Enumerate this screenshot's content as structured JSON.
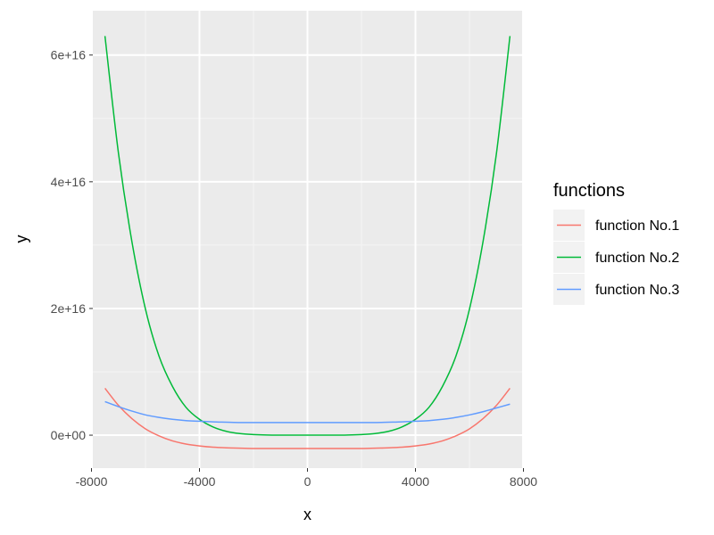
{
  "chart_data": {
    "type": "line",
    "title": "",
    "xlabel": "x",
    "ylabel": "y",
    "xlim": [
      -7950,
      7950
    ],
    "ylim": [
      -5200000000000000.0,
      6.7e+16
    ],
    "x_ticks": [
      -8000,
      -4000,
      0,
      4000,
      8000
    ],
    "x_tick_labels": [
      "-8000",
      "-4000",
      "0",
      "4000",
      "8000"
    ],
    "y_ticks": [
      0,
      2e+16,
      4e+16,
      6e+16
    ],
    "y_tick_labels": [
      "0e+00",
      "2e+16",
      "4e+16",
      "6e+16"
    ],
    "grid": true,
    "legend": {
      "title": "functions",
      "position": "right"
    },
    "x": [
      -7500,
      -7000,
      -6500,
      -6000,
      -5500,
      -5000,
      -4500,
      -4000,
      -3500,
      -3000,
      -2500,
      -2000,
      -1500,
      -1000,
      -500,
      0,
      500,
      1000,
      1500,
      2000,
      2500,
      3000,
      3500,
      4000,
      4500,
      5000,
      5500,
      6000,
      6500,
      7000,
      7500
    ],
    "series": [
      {
        "name": "function No.1",
        "color": "#F8766D",
        "values": [
          7400000000000000.0,
          4700000000000000.0,
          2600000000000000.0,
          1000000000000000.0,
          -100000000000000.0,
          -900000000000000.0,
          -1400000000000000.0,
          -1700000000000000.0,
          -1900000000000000.0,
          -2000000000000000.0,
          -2050000000000000.0,
          -2100000000000000.0,
          -2100000000000000.0,
          -2100000000000000.0,
          -2100000000000000.0,
          -2100000000000000.0,
          -2100000000000000.0,
          -2100000000000000.0,
          -2100000000000000.0,
          -2100000000000000.0,
          -2050000000000000.0,
          -2000000000000000.0,
          -1900000000000000.0,
          -1700000000000000.0,
          -1400000000000000.0,
          -900000000000000.0,
          -100000000000000.0,
          1000000000000000.0,
          2600000000000000.0,
          4700000000000000.0,
          7400000000000000.0
        ]
      },
      {
        "name": "function No.2",
        "color": "#00BA38",
        "values": [
          6.3e+16,
          4.45e+16,
          3.05e+16,
          1.99e+16,
          1.25e+16,
          7700000000000000.0,
          4400000000000000.0,
          2500000000000000.0,
          1300000000000000.0,
          600000000000000.0,
          250000000000000.0,
          100000000000000.0,
          30000000000000.0,
          5000000000000.0,
          0,
          0,
          0,
          5000000000000.0,
          30000000000000.0,
          100000000000000.0,
          250000000000000.0,
          600000000000000.0,
          1300000000000000.0,
          2500000000000000.0,
          4400000000000000.0,
          7700000000000000.0,
          1.25e+16,
          1.99e+16,
          3.05e+16,
          4.45e+16,
          6.3e+16
        ]
      },
      {
        "name": "function No.3",
        "color": "#619CFF",
        "values": [
          5300000000000000.0,
          4500000000000000.0,
          3800000000000000.0,
          3200000000000000.0,
          2800000000000000.0,
          2500000000000000.0,
          2300000000000000.0,
          2200000000000000.0,
          2100000000000000.0,
          2050000000000000.0,
          2000000000000000.0,
          2000000000000000.0,
          2000000000000000.0,
          2000000000000000.0,
          2000000000000000.0,
          2000000000000000.0,
          2000000000000000.0,
          2000000000000000.0,
          2000000000000000.0,
          2000000000000000.0,
          2000000000000000.0,
          2050000000000000.0,
          2100000000000000.0,
          2200000000000000.0,
          2300000000000000.0,
          2500000000000000.0,
          2800000000000000.0,
          3200000000000000.0,
          3700000000000000.0,
          4300000000000000.0,
          4900000000000000.0
        ]
      }
    ]
  }
}
